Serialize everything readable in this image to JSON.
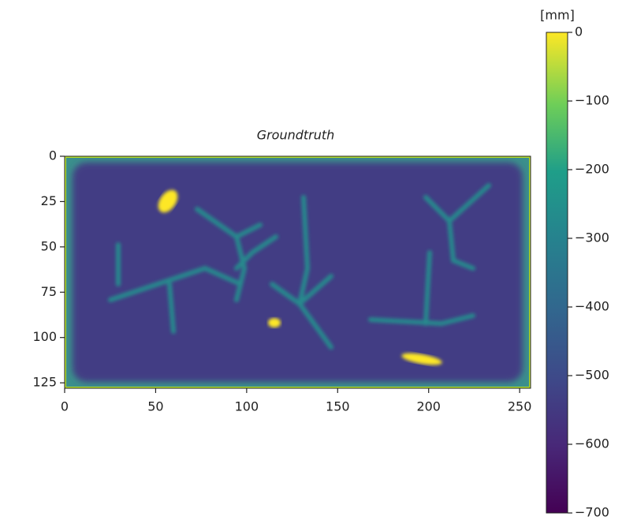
{
  "chart_data": {
    "type": "heatmap",
    "title": "Groundtruth",
    "xlim": [
      0,
      256
    ],
    "xticks": [
      0,
      50,
      100,
      150,
      200,
      250
    ],
    "ylim": [
      128,
      0
    ],
    "yticks": [
      0,
      25,
      50,
      75,
      100,
      125
    ],
    "colorbar": {
      "label": "[mm]",
      "clim": [
        -700,
        0
      ],
      "ticks": [
        0,
        {
          "value": -100,
          "label": "−100"
        },
        {
          "value": -200,
          "label": "−200"
        },
        {
          "value": -300,
          "label": "−300"
        },
        {
          "value": -400,
          "label": "−400"
        },
        {
          "value": -500,
          "label": "−500"
        },
        {
          "value": -600,
          "label": "−600"
        },
        {
          "value": -700,
          "label": "−700"
        }
      ],
      "colormap": "viridis"
    }
  }
}
